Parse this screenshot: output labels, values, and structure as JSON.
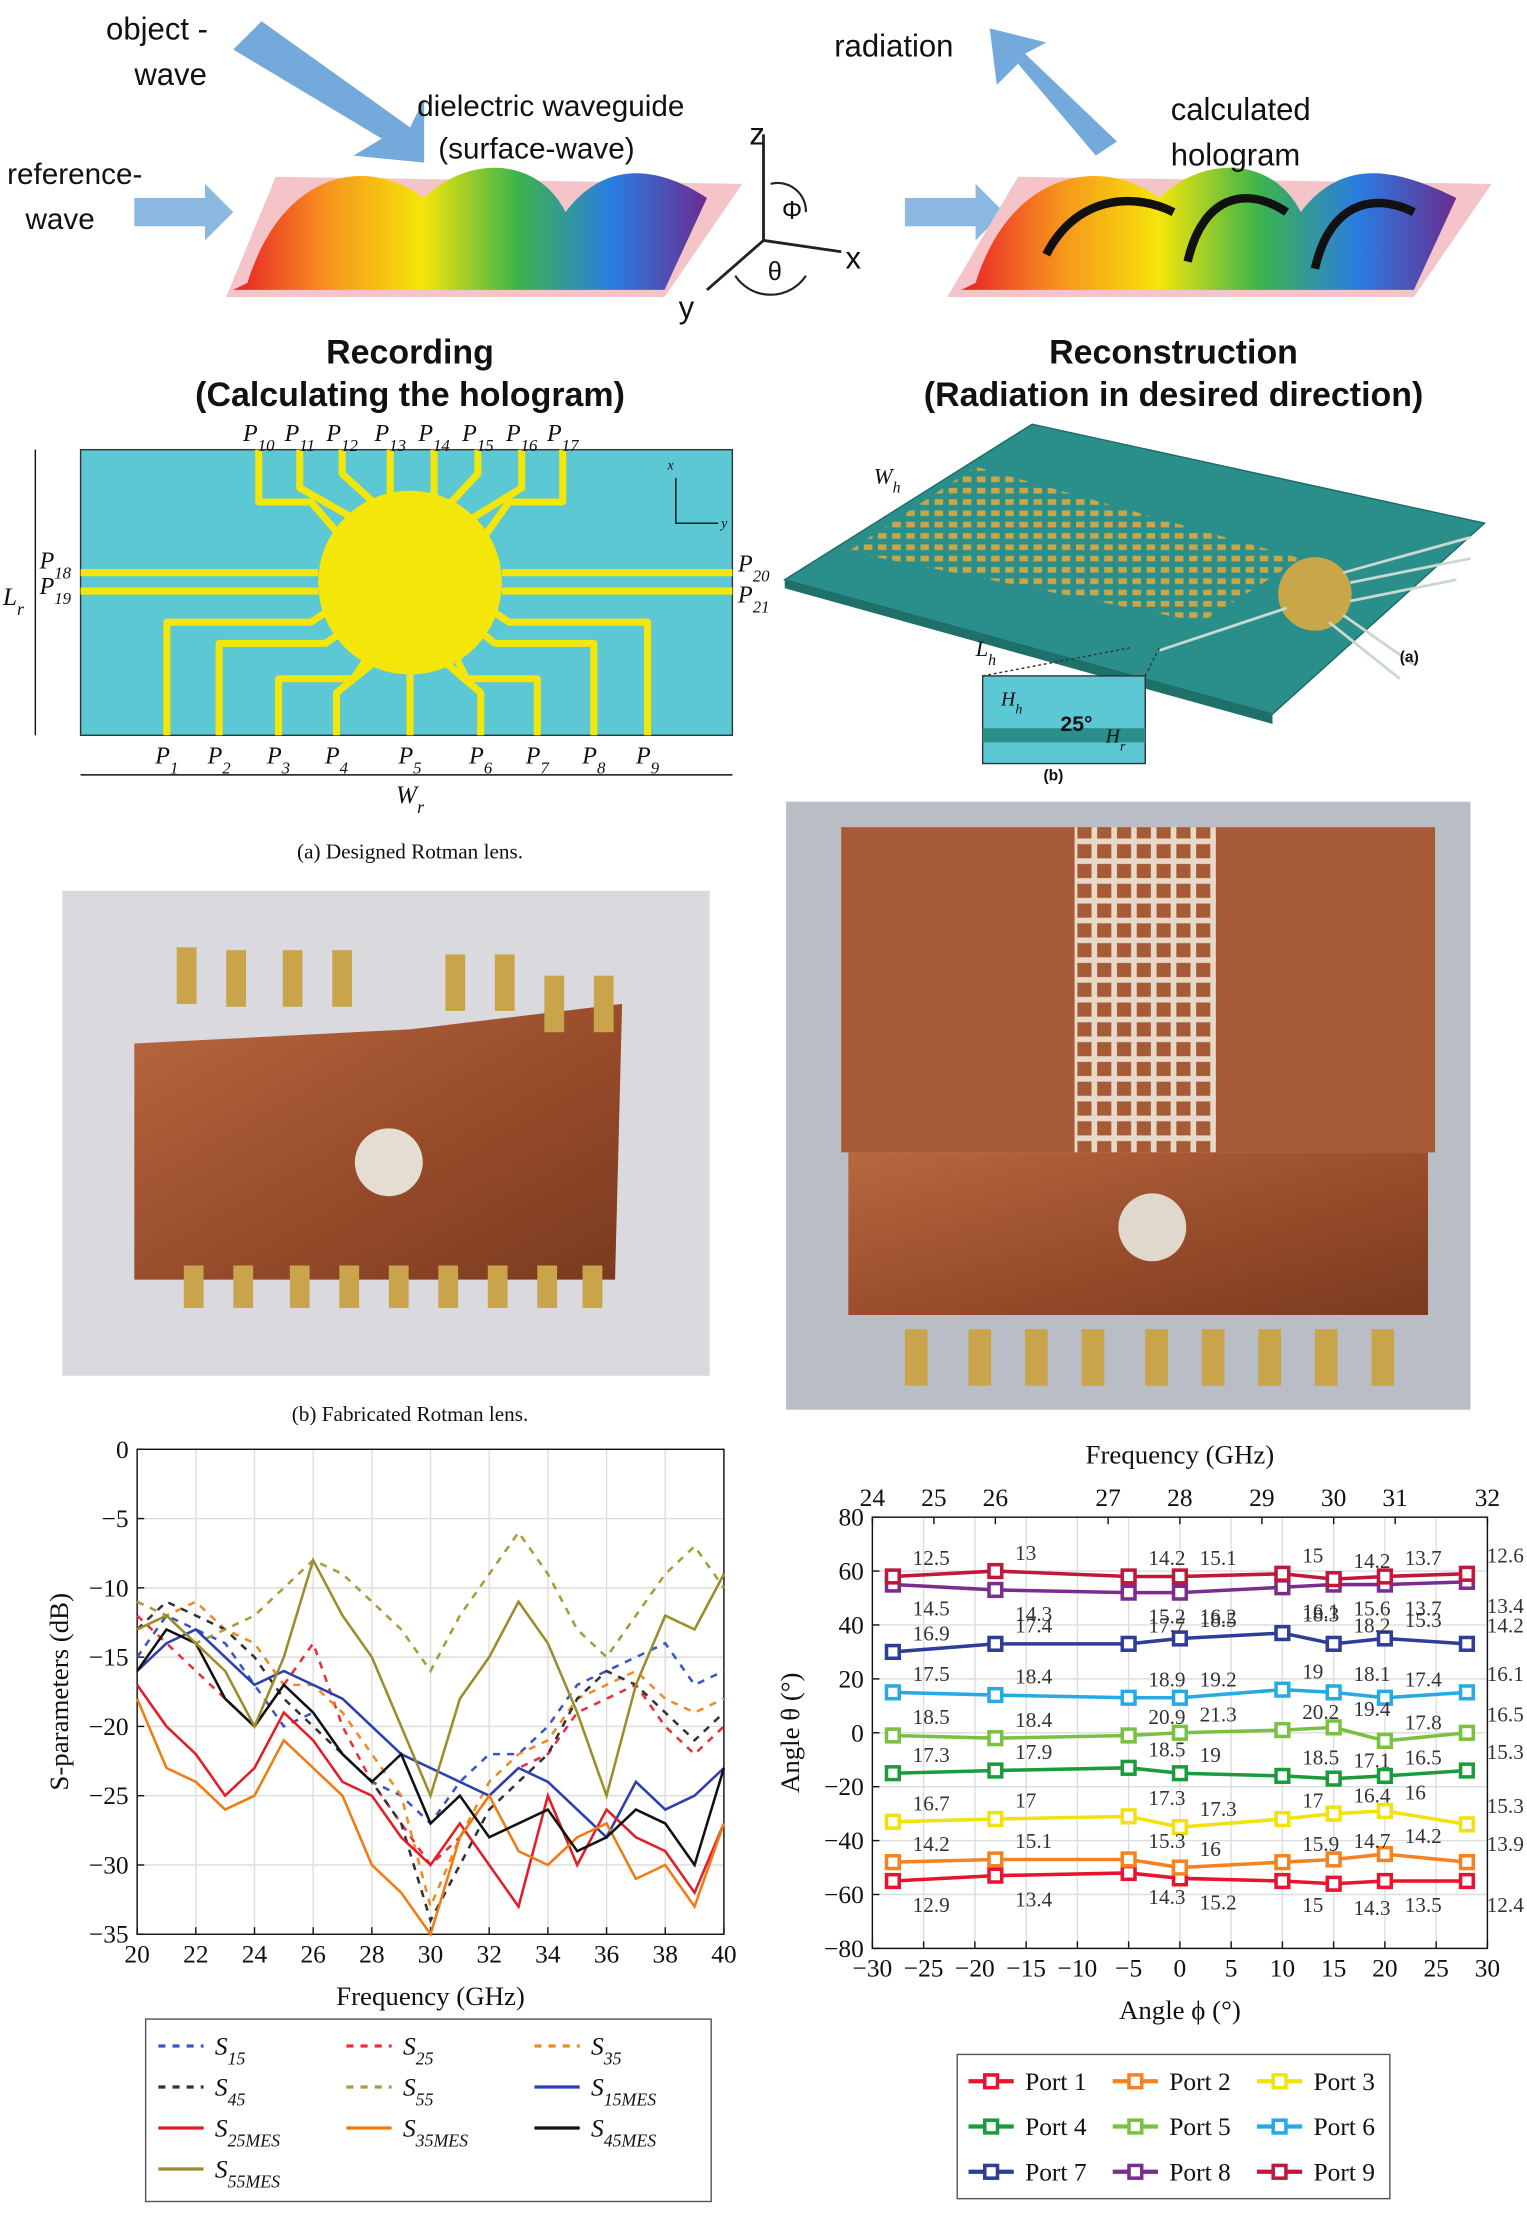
{
  "holography": {
    "object_wave": [
      "object -",
      "wave"
    ],
    "waveguide": [
      "dielectric waveguide",
      "(surface-wave)"
    ],
    "reference_wave": [
      "reference-",
      "wave"
    ],
    "radiation": "radiation",
    "hologram": [
      "calculated",
      "hologram"
    ],
    "axes": {
      "z": "z",
      "x": "x",
      "y": "y",
      "phi": "Φ",
      "theta": "θ"
    },
    "recording": [
      "Recording",
      "(Calculating the hologram)"
    ],
    "reconstruction": [
      "Reconstruction",
      "(Radiation in desired direction)"
    ]
  },
  "rotman_design": {
    "top_ports": [
      "P10",
      "P11",
      "P12",
      "P13",
      "P14",
      "P15",
      "P16",
      "P17"
    ],
    "bottom_ports": [
      "P1",
      "P2",
      "P3",
      "P4",
      "P5",
      "P6",
      "P7",
      "P8",
      "P9"
    ],
    "left_ports": [
      "P18",
      "P19"
    ],
    "right_ports": [
      "P20",
      "P21"
    ],
    "length": "Lr",
    "width": "Wr",
    "axis_x": "x",
    "axis_y": "y",
    "caption": "(a) Designed Rotman lens."
  },
  "antenna": {
    "width": "Wh",
    "length": "Lh",
    "inset_height": "Hh",
    "angle": "25°",
    "inset_height_2": "Hr",
    "label_a": "(a)",
    "label_b": "(b)"
  },
  "fabricated": {
    "caption": "(b) Fabricated Rotman lens."
  },
  "chart_data": [
    {
      "type": "line",
      "xlabel": "Frequency (GHz)",
      "ylabel": "S-parameters (dB)",
      "xlim": [
        20,
        40
      ],
      "ylim": [
        -35,
        0
      ],
      "grid": true,
      "xticks": [
        20,
        22,
        24,
        26,
        28,
        30,
        32,
        34,
        36,
        38,
        40
      ],
      "yticks": [
        0,
        {
          "value": -5,
          "label": "−5"
        },
        {
          "value": -10,
          "label": "−10"
        },
        {
          "value": -15,
          "label": "−15"
        },
        {
          "value": -20,
          "label": "−20"
        },
        {
          "value": -25,
          "label": "−25"
        },
        {
          "value": -30,
          "label": "−30"
        },
        {
          "value": -35,
          "label": "−35"
        }
      ],
      "x": [
        20,
        21,
        22,
        23,
        24,
        25,
        26,
        27,
        28,
        29,
        30,
        31,
        32,
        33,
        34,
        35,
        36,
        37,
        38,
        39,
        40
      ],
      "series": [
        {
          "name": "S15",
          "color": "#3a56c5",
          "dashed": true,
          "values": [
            -15,
            -12,
            -13,
            -14,
            -17,
            -20,
            -19,
            -22,
            -24,
            -25,
            -27,
            -24,
            -22,
            -22,
            -20,
            -17,
            -16,
            -15,
            -14,
            -17,
            -16
          ]
        },
        {
          "name": "S25",
          "color": "#e8303a",
          "dashed": true,
          "values": [
            -12,
            -14,
            -16,
            -18,
            -20,
            -17,
            -14,
            -20,
            -24,
            -27,
            -30,
            -28,
            -25,
            -23,
            -22,
            -19,
            -18,
            -17,
            -20,
            -22,
            -20
          ]
        },
        {
          "name": "S35",
          "color": "#f08a24",
          "dashed": true,
          "values": [
            -11,
            -12,
            -11,
            -13,
            -14,
            -17,
            -17,
            -19,
            -22,
            -25,
            -33,
            -28,
            -24,
            -22,
            -21,
            -18,
            -17,
            -16,
            -18,
            -19,
            -18
          ]
        },
        {
          "name": "S45",
          "color": "#333333",
          "dashed": true,
          "values": [
            -13,
            -11,
            -12,
            -13,
            -15,
            -18,
            -20,
            -22,
            -24,
            -27,
            -34,
            -30,
            -26,
            -24,
            -22,
            -18,
            -16,
            -17,
            -19,
            -21,
            -19
          ]
        },
        {
          "name": "S55",
          "color": "#a99b3a",
          "dashed": true,
          "values": [
            -11,
            -12,
            -14,
            -13,
            -12,
            -10,
            -8,
            -9,
            -11,
            -13,
            -16,
            -12,
            -9,
            -6,
            -9,
            -13,
            -15,
            -12,
            -9,
            -7,
            -10
          ]
        },
        {
          "name": "S15MES",
          "color": "#2b3fb0",
          "dashed": false,
          "values": [
            -16,
            -14,
            -13,
            -15,
            -17,
            -16,
            -17,
            -18,
            -20,
            -22,
            -23,
            -24,
            -25,
            -23,
            -24,
            -26,
            -28,
            -24,
            -26,
            -25,
            -23
          ]
        },
        {
          "name": "S25MES",
          "color": "#e01e27",
          "dashed": false,
          "values": [
            -17,
            -20,
            -22,
            -25,
            -23,
            -19,
            -21,
            -24,
            -25,
            -28,
            -30,
            -27,
            -30,
            -33,
            -25,
            -30,
            -26,
            -28,
            -29,
            -32,
            -27
          ]
        },
        {
          "name": "S35MES",
          "color": "#f07b12",
          "dashed": false,
          "values": [
            -18,
            -23,
            -24,
            -26,
            -25,
            -21,
            -23,
            -25,
            -30,
            -32,
            -35,
            -28,
            -25,
            -29,
            -30,
            -28,
            -27,
            -31,
            -30,
            -33,
            -27
          ]
        },
        {
          "name": "S45MES",
          "color": "#111111",
          "dashed": false,
          "values": [
            -16,
            -13,
            -14,
            -18,
            -20,
            -17,
            -19,
            -22,
            -24,
            -22,
            -27,
            -25,
            -28,
            -27,
            -26,
            -29,
            -28,
            -26,
            -27,
            -30,
            -23
          ]
        },
        {
          "name": "S55MES",
          "color": "#9b8d2a",
          "dashed": false,
          "values": [
            -13,
            -12,
            -14,
            -16,
            -20,
            -15,
            -8,
            -12,
            -15,
            -20,
            -25,
            -18,
            -15,
            -11,
            -14,
            -19,
            -25,
            -17,
            -12,
            -13,
            -9
          ]
        }
      ]
    },
    {
      "type": "line",
      "xlabel": "Angle ϕ (°)",
      "ylabel": "Angle θ (°)",
      "xlim": [
        -30,
        30
      ],
      "ylim": [
        -80,
        80
      ],
      "grid": true,
      "xticks": [
        {
          "value": -30,
          "label": "−30"
        },
        {
          "value": -25,
          "label": "−25"
        },
        {
          "value": -20,
          "label": "−20"
        },
        {
          "value": -15,
          "label": "−15"
        },
        {
          "value": -10,
          "label": "−10"
        },
        {
          "value": -5,
          "label": "−5"
        },
        0,
        5,
        10,
        15,
        20,
        25,
        30
      ],
      "yticks": [
        {
          "value": -80,
          "label": "−80"
        },
        {
          "value": -60,
          "label": "−60"
        },
        {
          "value": -40,
          "label": "−40"
        },
        {
          "value": -20,
          "label": "−20"
        },
        0,
        20,
        40,
        60,
        80
      ],
      "x2": {
        "label": "Frequency (GHz)",
        "ticks": [
          24,
          25,
          26,
          27,
          28,
          29,
          30,
          31,
          32
        ],
        "at": [
          -30,
          -24,
          -18,
          -7,
          0,
          8,
          15,
          21,
          30
        ]
      },
      "x": [
        -28,
        -18,
        -5,
        0,
        10,
        15,
        20,
        28
      ],
      "series": [
        {
          "name": "Port 1",
          "color": "#e8132e",
          "values": [
            -55,
            -53,
            -52,
            -54,
            -55,
            -56,
            -55,
            -55
          ],
          "gain": [
            12.9,
            13.4,
            14.3,
            15.2,
            15,
            14.3,
            13.5,
            12.4
          ]
        },
        {
          "name": "Port 2",
          "color": "#f58220",
          "values": [
            -48,
            -47,
            -47,
            -50,
            -48,
            -47,
            -45,
            -48
          ],
          "gain": [
            14.2,
            15.1,
            15.3,
            16,
            15.9,
            14.7,
            14.2,
            13.9
          ]
        },
        {
          "name": "Port 3",
          "color": "#f2e20c",
          "values": [
            -33,
            -32,
            -31,
            -35,
            -32,
            -30,
            -29,
            -34
          ],
          "gain": [
            16.7,
            17,
            17.3,
            17.3,
            17,
            16.4,
            16,
            15.3
          ]
        },
        {
          "name": "Port 4",
          "color": "#1a9b3c",
          "values": [
            -15,
            -14,
            -13,
            -15,
            -16,
            -17,
            -16,
            -14
          ],
          "gain": [
            17.3,
            17.9,
            18.5,
            19,
            18.5,
            17.1,
            16.5,
            15.3
          ]
        },
        {
          "name": "Port 5",
          "color": "#7ac143",
          "values": [
            -1,
            -2,
            -1,
            0,
            1,
            2,
            -3,
            0
          ],
          "gain": [
            18.5,
            18.4,
            20.9,
            21.3,
            20.2,
            19.4,
            17.8,
            16.5
          ]
        },
        {
          "name": "Port 6",
          "color": "#27aae1",
          "values": [
            15,
            14,
            13,
            13,
            16,
            15,
            13,
            15
          ],
          "gain": [
            17.5,
            18.4,
            18.9,
            19.2,
            19,
            18.1,
            17.4,
            16.1
          ]
        },
        {
          "name": "Port 7",
          "color": "#2e3d98",
          "values": [
            30,
            33,
            33,
            35,
            37,
            33,
            35,
            33
          ],
          "gain": [
            16.9,
            17.4,
            17.7,
            18.5,
            18.3,
            18.2,
            15.3,
            14.2
          ]
        },
        {
          "name": "Port 8",
          "color": "#7b2d8e",
          "values": [
            55,
            53,
            52,
            52,
            54,
            55,
            55,
            56
          ],
          "gain": [
            14.5,
            14.3,
            15.2,
            16.2,
            16.1,
            15.6,
            13.7,
            13.4
          ]
        },
        {
          "name": "Port 9",
          "color": "#c1173b",
          "values": [
            58,
            60,
            58,
            58,
            59,
            57,
            58,
            59
          ],
          "gain": [
            12.5,
            13,
            14.2,
            15.1,
            15,
            14.2,
            13.7,
            12.6
          ]
        }
      ]
    }
  ]
}
